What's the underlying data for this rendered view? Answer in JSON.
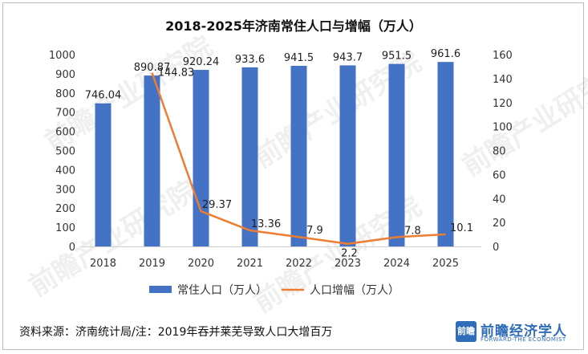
{
  "chart_data": {
    "type": "bar+line",
    "title": "2018-2025年济南常住人口与增幅（万人）",
    "categories": [
      "2018",
      "2019",
      "2020",
      "2021",
      "2022",
      "2023",
      "2024",
      "2025"
    ],
    "series": [
      {
        "name": "常住人口（万人）",
        "type": "bar",
        "axis": "left",
        "color": "#4472C4",
        "values": [
          746.04,
          890.87,
          920.24,
          933.6,
          941.5,
          943.7,
          951.5,
          961.6
        ],
        "labels": [
          "746.04",
          "890.87",
          "920.24",
          "933.6",
          "941.5",
          "943.7",
          "951.5",
          "961.6"
        ]
      },
      {
        "name": "人口增幅（万人）",
        "type": "line",
        "axis": "right",
        "color": "#ED7D31",
        "values": [
          null,
          144.83,
          29.37,
          13.36,
          7.9,
          2.2,
          7.8,
          10.1
        ],
        "labels": [
          "",
          "144.83",
          "29.37",
          "13.36",
          "7.9",
          "2.2",
          "7.8",
          "10.1"
        ]
      }
    ],
    "y_left": {
      "min": 0,
      "max": 1000,
      "ticks": [
        "0",
        "100",
        "200",
        "300",
        "400",
        "500",
        "600",
        "700",
        "800",
        "900",
        "1000"
      ]
    },
    "y_right": {
      "min": 0,
      "max": 160,
      "ticks": [
        "0",
        "20",
        "40",
        "60",
        "80",
        "100",
        "120",
        "140",
        "160"
      ]
    },
    "grid": false,
    "legend_position": "bottom"
  },
  "footer": {
    "source": "资料来源：济南统计局/注：2019年吞并莱芜导致人口大增百万"
  },
  "brand": {
    "logo_text": "前瞻",
    "name": "前瞻经济学人",
    "subtitle": "FORWARD-THE ECONOMIST",
    "color": "#2f6db8"
  },
  "watermark": {
    "text": "前瞻产业研究院"
  }
}
